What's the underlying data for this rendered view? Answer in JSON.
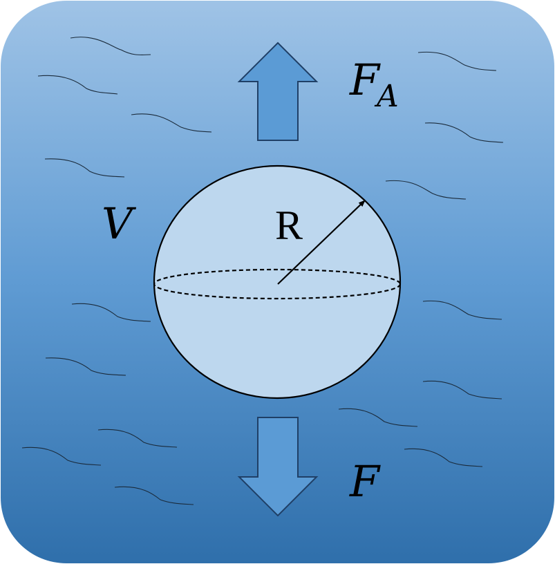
{
  "labels": {
    "buoyant_force_main": "F",
    "buoyant_force_sub": "A",
    "force": "F",
    "volume": "V",
    "radius": "R"
  },
  "colors": {
    "background_top": "#9fc3e6",
    "background_bottom": "#2f6fab",
    "arrow_fill": "#5b9bd5",
    "arrow_stroke": "#1f3f66",
    "sphere_fill": "#bdd7ee",
    "outline": "#000000"
  }
}
